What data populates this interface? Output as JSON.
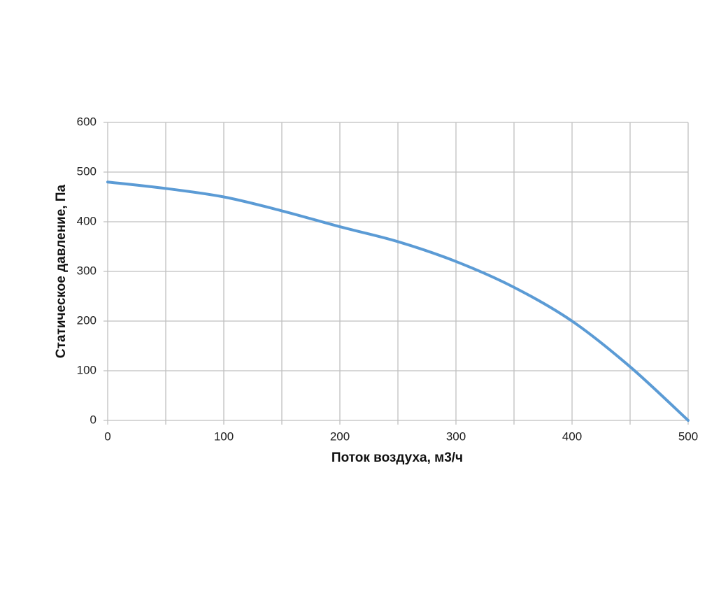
{
  "chart_data": {
    "type": "line",
    "x_label": "Поток воздуха, м3/ч",
    "y_label": "Статическое давление, Па",
    "x": [
      0,
      50,
      100,
      150,
      200,
      250,
      300,
      350,
      400,
      450,
      500
    ],
    "series": [
      {
        "color": "#5b9bd5",
        "values": [
          480,
          467,
          450,
          422,
          390,
          360,
          320,
          268,
          200,
          108,
          0
        ]
      }
    ],
    "xlim": [
      0,
      500
    ],
    "xticks": [
      0,
      100,
      200,
      300,
      400,
      500
    ],
    "xminorticks": [
      50,
      150,
      250,
      350,
      450
    ],
    "ylim": [
      0,
      600
    ],
    "yticks": [
      0,
      100,
      200,
      300,
      400,
      500,
      600
    ],
    "grid": true
  }
}
